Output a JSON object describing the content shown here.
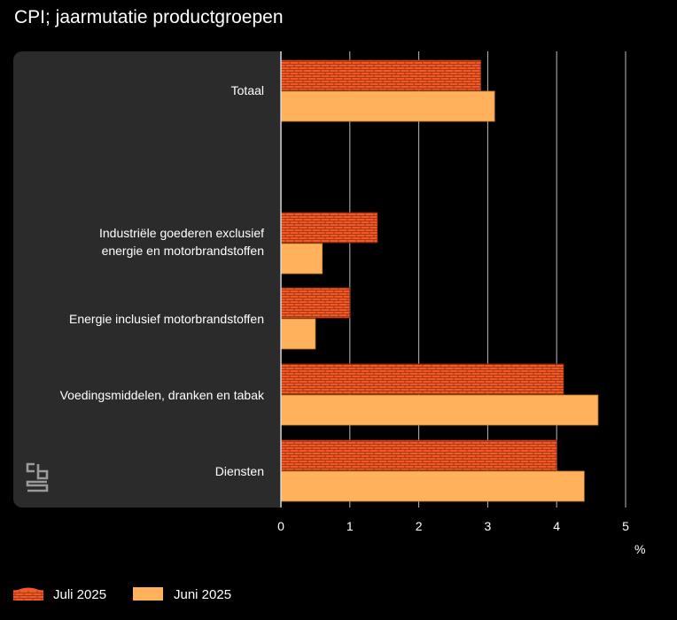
{
  "title": "CPI; jaarmutatie productgroepen",
  "unit_label": "%",
  "colors": {
    "juli": "#f05a28",
    "juni": "#ffb25b",
    "grid": "#bbbbbb",
    "panel": "#2b2b2b"
  },
  "chart_data": {
    "type": "bar",
    "orientation": "horizontal",
    "categories": [
      "Totaal",
      "Industriële goederen exclusief energie en motorbrandstoffen",
      "Energie inclusief motorbrandstoffen",
      "Voedingsmiddelen, dranken en tabak",
      "Diensten"
    ],
    "category_lines": [
      [
        "Totaal"
      ],
      [
        "Industriële goederen exclusief",
        "energie en motorbrandstoffen"
      ],
      [
        "Energie inclusief motorbrandstoffen"
      ],
      [
        "Voedingsmiddelen, dranken en tabak"
      ],
      [
        "Diensten"
      ]
    ],
    "series": [
      {
        "name": "Juli 2025",
        "values": [
          2.9,
          1.4,
          1.0,
          4.1,
          4.0
        ]
      },
      {
        "name": "Juni 2025",
        "values": [
          3.1,
          0.6,
          0.5,
          4.6,
          4.4
        ]
      }
    ],
    "xlim": [
      0,
      5
    ],
    "xticks": [
      "0",
      "1",
      "2",
      "3",
      "4",
      "5"
    ],
    "xlabel": "%",
    "grid": true,
    "legend_position": "bottom-left"
  },
  "legend": {
    "items": [
      "Juli 2025",
      "Juni 2025"
    ]
  }
}
